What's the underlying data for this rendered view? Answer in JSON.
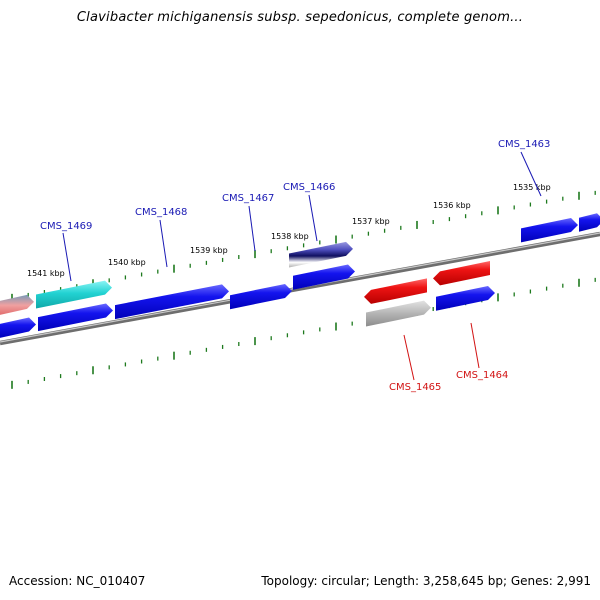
{
  "title": "Clavibacter michiganensis subsp. sepedonicus, complete genom...",
  "footer": {
    "accession": "Accession: NC_010407",
    "topology": "Topology: circular; Length: 3,258,645 bp; Genes: 2,991"
  },
  "ticks": [
    {
      "label": "1535 kbp"
    },
    {
      "label": "1536 kbp"
    },
    {
      "label": "1537 kbp"
    },
    {
      "label": "1538 kbp"
    },
    {
      "label": "1539 kbp"
    },
    {
      "label": "1540 kbp"
    },
    {
      "label": "1541 kbp"
    }
  ],
  "gene_labels": {
    "forward": [
      "CMS_1463",
      "CMS_1466",
      "CMS_1467",
      "CMS_1468",
      "CMS_1469"
    ],
    "reverse": [
      "CMS_1464",
      "CMS_1465"
    ]
  },
  "colors": {
    "forward_label": "#1a1ab4",
    "reverse_label": "#d21414",
    "forward_gene": "#0a0ae6",
    "reverse_gene": "#e60a0a",
    "backbone": "#8a8a8a",
    "tick": "#1e7a1e"
  }
}
